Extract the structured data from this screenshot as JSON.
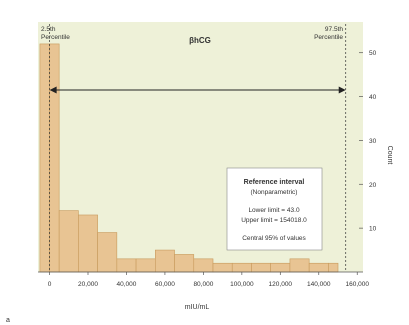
{
  "chart_data": {
    "type": "bar",
    "title": "βhCG",
    "xlabel": "mIU/mL",
    "ylabel": "Count",
    "panel_label": "a",
    "x_ticks": [
      {
        "value": 0,
        "label": "0"
      },
      {
        "value": 20000,
        "label": "20,000"
      },
      {
        "value": 40000,
        "label": "40,000"
      },
      {
        "value": 60000,
        "label": "60,000"
      },
      {
        "value": 80000,
        "label": "80,000"
      },
      {
        "value": 100000,
        "label": "100,000"
      },
      {
        "value": 120000,
        "label": "120,000"
      },
      {
        "value": 140000,
        "label": "140,000"
      },
      {
        "value": 160000,
        "label": "160,000"
      }
    ],
    "y_ticks": [
      10,
      20,
      30,
      40,
      50
    ],
    "xlim": [
      -6000,
      163000
    ],
    "ylim": [
      0,
      57
    ],
    "y_axis_side": "right",
    "bin_width": 10000,
    "bins": [
      {
        "start": -5000,
        "end": 0,
        "count": 52
      },
      {
        "start": 0,
        "end": 5000,
        "count": 52
      },
      {
        "start": 5000,
        "end": 15000,
        "count": 14
      },
      {
        "start": 15000,
        "end": 25000,
        "count": 13
      },
      {
        "start": 25000,
        "end": 35000,
        "count": 9
      },
      {
        "start": 35000,
        "end": 45000,
        "count": 3
      },
      {
        "start": 45000,
        "end": 55000,
        "count": 3
      },
      {
        "start": 55000,
        "end": 65000,
        "count": 5
      },
      {
        "start": 65000,
        "end": 75000,
        "count": 4
      },
      {
        "start": 75000,
        "end": 85000,
        "count": 3
      },
      {
        "start": 85000,
        "end": 95000,
        "count": 2
      },
      {
        "start": 95000,
        "end": 105000,
        "count": 2
      },
      {
        "start": 105000,
        "end": 115000,
        "count": 2
      },
      {
        "start": 115000,
        "end": 125000,
        "count": 2
      },
      {
        "start": 125000,
        "end": 135000,
        "count": 3
      },
      {
        "start": 135000,
        "end": 145000,
        "count": 2
      },
      {
        "start": 145000,
        "end": 150000,
        "count": 2
      }
    ],
    "reference_lines": [
      {
        "value": 43,
        "label_line1": "2.5th",
        "label_line2": "Percentile"
      },
      {
        "value": 154018,
        "label_line1": "97.5th",
        "label_line2": "Percentile"
      }
    ],
    "annotation": {
      "title": "Reference interval",
      "subtitle": "(Nonparametric)",
      "lower": "Lower limit = 43.0",
      "upper": "Upper limit = 154018.0",
      "note": "Central 95% of values"
    },
    "colors": {
      "background": "#eef1d8",
      "bar_fill": "#e8c493",
      "bar_stroke": "#c79a5c",
      "axis": "#555555",
      "text": "#333333"
    },
    "grid": false
  }
}
